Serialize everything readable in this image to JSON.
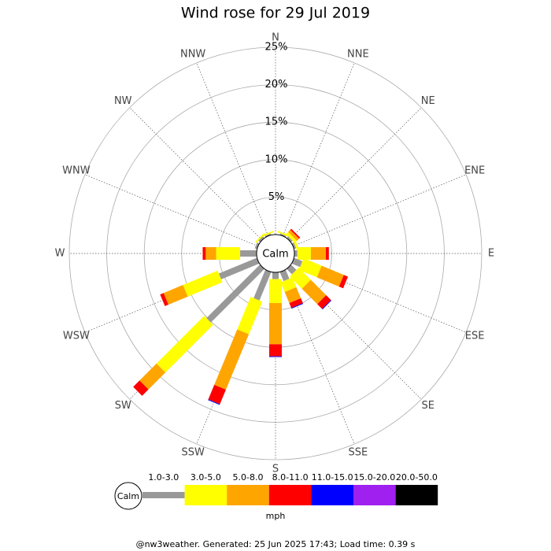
{
  "chart_data": {
    "type": "windrose",
    "title": "Wind rose for 29 Jul 2019",
    "directions": [
      "N",
      "NNE",
      "NE",
      "ENE",
      "E",
      "ESE",
      "SE",
      "SSE",
      "S",
      "SSW",
      "SW",
      "WSW",
      "W",
      "WNW",
      "NW",
      "NNW"
    ],
    "center_label": "Calm",
    "rlim": [
      0,
      25
    ],
    "rticks": [
      {
        "value": 5,
        "label": "5%"
      },
      {
        "value": 10,
        "label": "10%"
      },
      {
        "value": 15,
        "label": "15%"
      },
      {
        "value": 20,
        "label": "20%"
      },
      {
        "value": 25,
        "label": "25%"
      }
    ],
    "unit": "mph",
    "series": [
      {
        "name": "1.0-3.0",
        "color": "#999999",
        "values": [
          0,
          0.2,
          0.3,
          0.3,
          0.4,
          1.2,
          1.0,
          1.3,
          0.9,
          4.1,
          10.1,
          5.5,
          2.2,
          0.3,
          0.3,
          0.2
        ]
      },
      {
        "name": "3.0-5.0",
        "color": "#ffff00",
        "values": [
          0,
          0.2,
          0.4,
          0.3,
          1.8,
          2.6,
          2.3,
          1.4,
          3.2,
          4.7,
          9.0,
          5.0,
          3.2,
          0,
          0.2,
          0.2
        ]
      },
      {
        "name": "5.0-8.0",
        "color": "#ffa500",
        "values": [
          0,
          0,
          0.4,
          0,
          2.0,
          3.2,
          2.9,
          1.6,
          5.5,
          8.0,
          3.2,
          2.8,
          1.4,
          0,
          0,
          0
        ]
      },
      {
        "name": "8.0-11.0",
        "color": "#ff0000",
        "values": [
          0,
          0,
          0.2,
          0,
          0.4,
          0.6,
          0.9,
          0.7,
          1.6,
          2.1,
          1.2,
          0.5,
          0.4,
          0,
          0,
          0
        ]
      },
      {
        "name": "11.0-15.0",
        "color": "#0000ff",
        "values": [
          0,
          0,
          0,
          0,
          0,
          0,
          0.1,
          0.1,
          0.1,
          0.1,
          0,
          0,
          0,
          0,
          0,
          0
        ]
      },
      {
        "name": "15.0-20.0",
        "color": "#a020f0",
        "values": [
          0,
          0,
          0,
          0,
          0,
          0,
          0,
          0,
          0,
          0,
          0,
          0,
          0,
          0,
          0,
          0
        ]
      },
      {
        "name": "20.0-50.0",
        "color": "#000000",
        "values": [
          0,
          0,
          0,
          0,
          0,
          0,
          0,
          0,
          0,
          0,
          0,
          0,
          0,
          0,
          0,
          0
        ]
      }
    ]
  },
  "footer": "@nw3weather. Generated: 25 Jun 2025 17:43; Load time: 0.39 s"
}
